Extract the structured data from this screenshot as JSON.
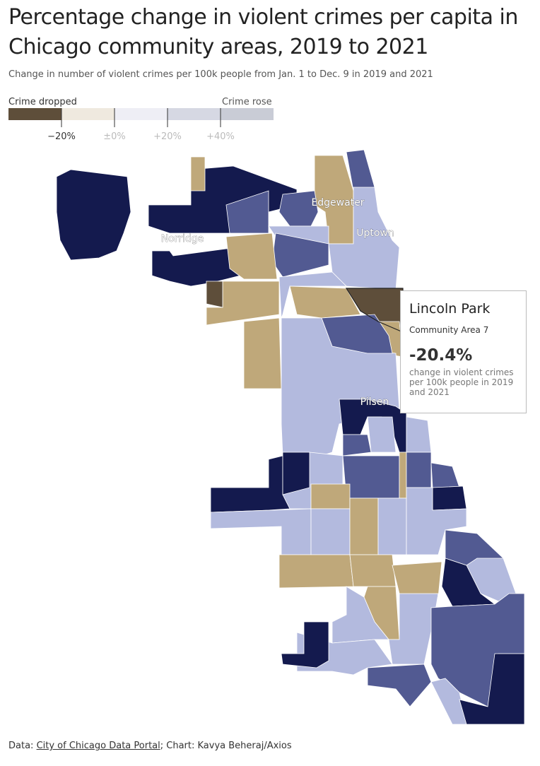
{
  "header": {
    "title": "Percentage change in violent crimes per capita in Chicago community areas, 2019 to 2021",
    "subtitle": "Change in number of violent crimes per 100k people from Jan. 1 to Dec. 9 in 2019 and 2021"
  },
  "legend": {
    "left_label": "Crime dropped",
    "right_label": "Crime rose",
    "ticks": [
      "−20%",
      "±0%",
      "+20%",
      "+40%"
    ]
  },
  "map_labels": [
    "Edgewater",
    "Uptown",
    "Norridge",
    "Pilsen"
  ],
  "tooltip": {
    "title": "Lincoln Park",
    "subtitle": "Community Area 7",
    "value": "-20.4%",
    "description": "change in violent crimes per 100k people in 2019 and 2021"
  },
  "footer": {
    "prefix": "Data:",
    "link": "City of Chicago Data Portal",
    "credit": "; Chart: Kavya Beheraj/Axios"
  }
}
